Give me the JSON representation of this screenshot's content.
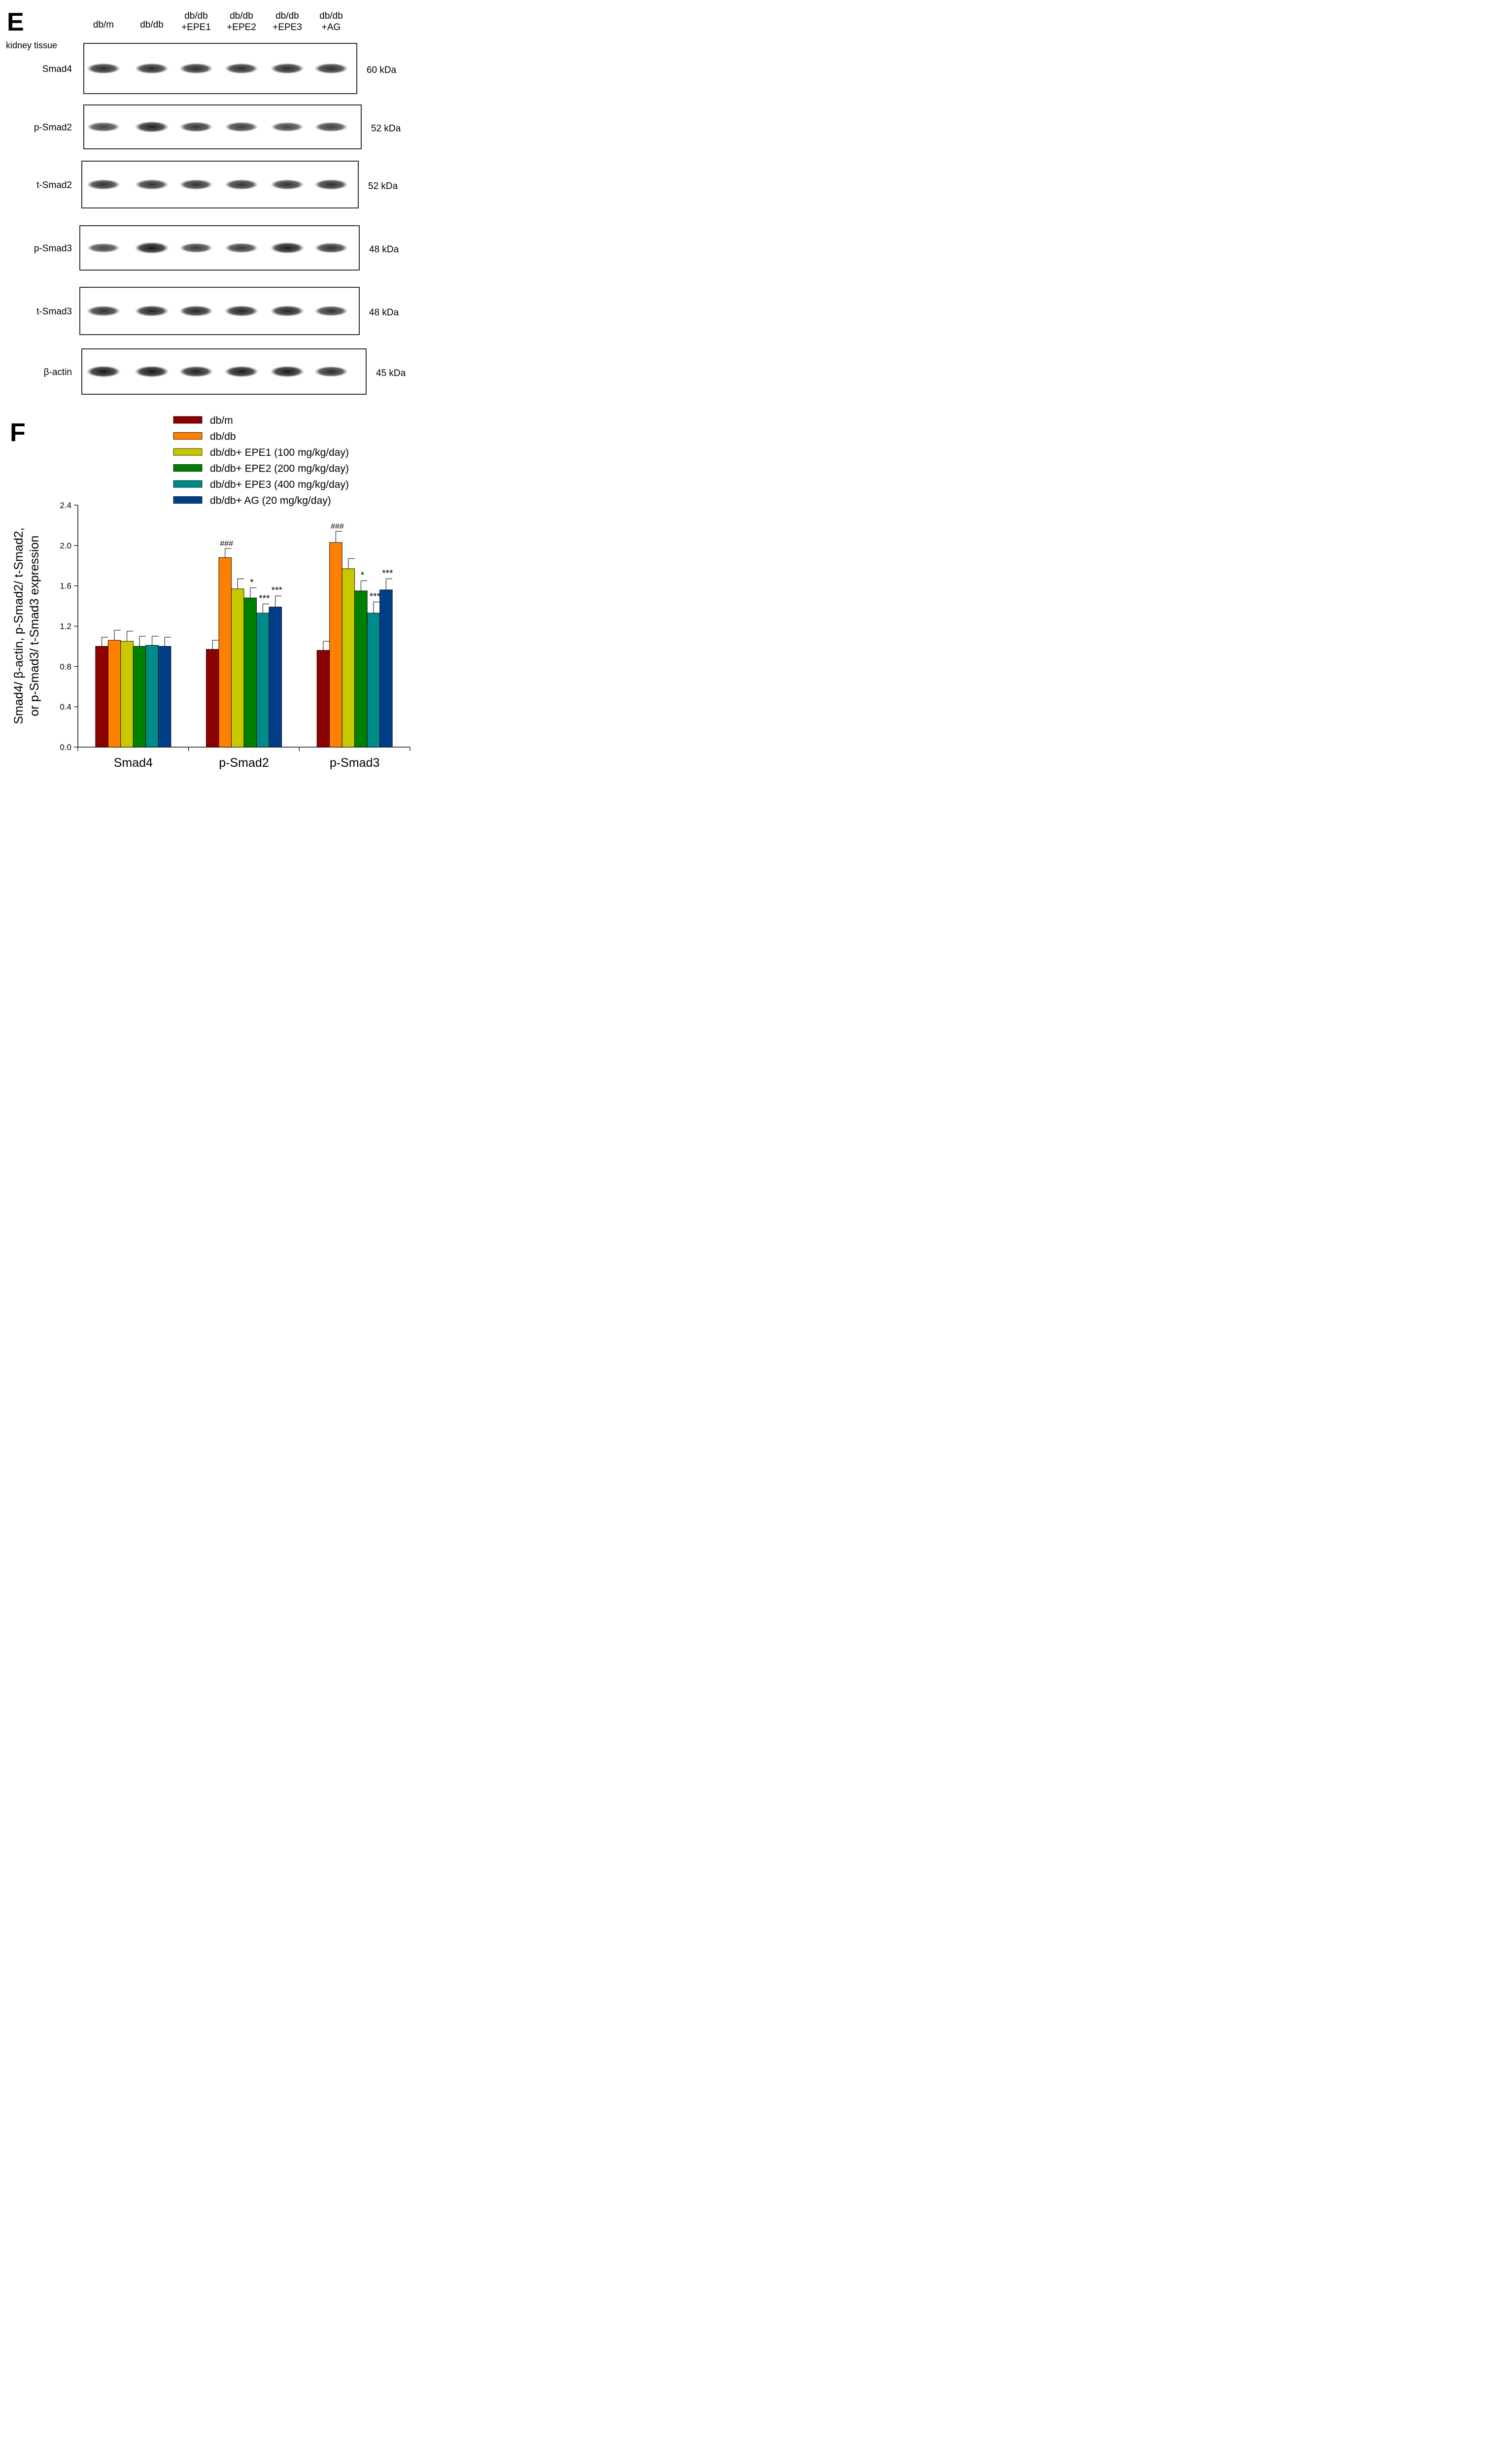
{
  "panel_e": {
    "label": "E",
    "tissue_label": "kidney tissue",
    "lanes": [
      [
        "db/m"
      ],
      [
        "db/db"
      ],
      [
        "db/db",
        "+EPE1"
      ],
      [
        "db/db",
        "+EPE2"
      ],
      [
        "db/db",
        "+EPE3"
      ],
      [
        "db/db",
        "+AG"
      ]
    ],
    "blots": [
      {
        "name": "Smad4",
        "size": "60 kDa",
        "intensity": [
          0.8,
          0.8,
          0.78,
          0.78,
          0.8,
          0.78
        ]
      },
      {
        "name": "p-Smad2",
        "size": "52 kDa",
        "intensity": [
          0.62,
          0.88,
          0.72,
          0.68,
          0.6,
          0.66
        ]
      },
      {
        "name": "t-Smad2",
        "size": "52 kDa",
        "intensity": [
          0.74,
          0.74,
          0.74,
          0.74,
          0.74,
          0.78
        ]
      },
      {
        "name": "p-Smad3",
        "size": "48 kDa",
        "intensity": [
          0.6,
          0.95,
          0.68,
          0.7,
          0.9,
          0.75
        ]
      },
      {
        "name": "t-Smad3",
        "size": "48 kDa",
        "intensity": [
          0.76,
          0.86,
          0.84,
          0.86,
          0.86,
          0.74
        ]
      },
      {
        "name": "β-actin",
        "size": "45 kDa",
        "intensity": [
          0.95,
          0.95,
          0.88,
          0.9,
          0.92,
          0.8
        ]
      }
    ]
  },
  "panel_f": {
    "label": "F"
  },
  "chart_data": {
    "type": "bar",
    "title": "",
    "xlabel": "",
    "ylabel_lines": [
      "Smad4/ β-actin, p-Smad2/ t-Smad2,",
      "or p-Smad3/ t-Smad3 expression"
    ],
    "categories": [
      "Smad4",
      "p-Smad2",
      "p-Smad3"
    ],
    "ylim": [
      0,
      2.4
    ],
    "yticks": [
      0.0,
      0.4,
      0.8,
      1.2,
      1.6,
      2.0,
      2.4
    ],
    "ytick_labels": [
      "0.0",
      "0.4",
      "0.8",
      "1.2",
      "1.6",
      "2.0",
      "2.4"
    ],
    "legend_position": "top",
    "series": [
      {
        "name": "db/m",
        "color": "#8b0000",
        "values": [
          1.0,
          0.97,
          0.96
        ],
        "errors": [
          0.09,
          0.09,
          0.09
        ],
        "annotations": [
          "",
          "",
          ""
        ]
      },
      {
        "name": "db/db",
        "color": "#ff8000",
        "values": [
          1.06,
          1.88,
          2.03
        ],
        "errors": [
          0.1,
          0.09,
          0.11
        ],
        "annotations": [
          "",
          "###",
          "###"
        ]
      },
      {
        "name": "db/db+ EPE1 (100 mg/kg/day)",
        "color": "#c8c800",
        "values": [
          1.05,
          1.57,
          1.77
        ],
        "errors": [
          0.1,
          0.1,
          0.1
        ],
        "annotations": [
          "",
          "",
          ""
        ]
      },
      {
        "name": "db/db+ EPE2 (200 mg/kg/day)",
        "color": "#008000",
        "values": [
          1.0,
          1.48,
          1.55
        ],
        "errors": [
          0.1,
          0.1,
          0.1
        ],
        "annotations": [
          "",
          "*",
          "*"
        ]
      },
      {
        "name": "db/db+ EPE3 (400 mg/kg/day)",
        "color": "#008b8b",
        "values": [
          1.01,
          1.33,
          1.33
        ],
        "errors": [
          0.09,
          0.09,
          0.11
        ],
        "annotations": [
          "",
          "***",
          "***"
        ]
      },
      {
        "name": "db/db+ AG (20 mg/kg/day)",
        "color": "#003f87",
        "values": [
          1.0,
          1.39,
          1.56
        ],
        "errors": [
          0.09,
          0.11,
          0.11
        ],
        "annotations": [
          "",
          "***",
          "***"
        ]
      }
    ]
  }
}
